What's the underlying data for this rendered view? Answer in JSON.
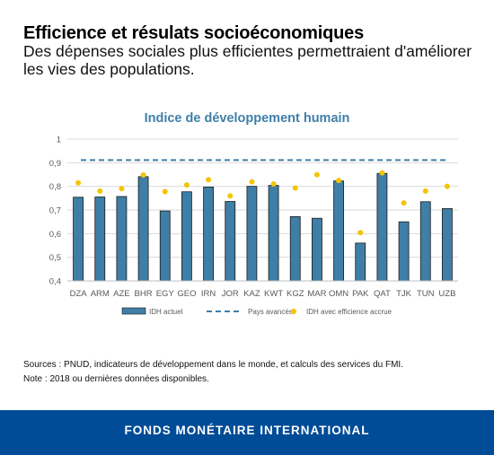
{
  "header": {
    "title": "Efficience et résulats socioéconomiques",
    "subtitle": "Des dépenses sociales plus efficientes permettraient d'améliorer les vies des populations."
  },
  "chart_data": {
    "type": "bar",
    "title": "Indice de développement humain",
    "categories": [
      "DZA",
      "ARM",
      "AZE",
      "BHR",
      "EGY",
      "GEO",
      "IRN",
      "JOR",
      "KAZ",
      "KWT",
      "KGZ",
      "MAR",
      "OMN",
      "PAK",
      "QAT",
      "TJK",
      "TUN",
      "UZB"
    ],
    "ylim": [
      0.4,
      1
    ],
    "yticks": [
      "0,4",
      "0,5",
      "0,6",
      "0,7",
      "0,8",
      "0,9",
      "1"
    ],
    "grid": true,
    "legend_position": "bottom",
    "series": [
      {
        "name": "IDH actuel",
        "kind": "bar",
        "color": "#3f7ea6",
        "values": [
          0.754,
          0.755,
          0.757,
          0.841,
          0.696,
          0.777,
          0.797,
          0.736,
          0.8,
          0.804,
          0.672,
          0.665,
          0.823,
          0.56,
          0.855,
          0.65,
          0.735,
          0.706
        ]
      },
      {
        "name": "Pays avancés",
        "kind": "dashed-line",
        "color": "#3f7ea6",
        "value": 0.911
      },
      {
        "name": "IDH avec efficience accrue",
        "kind": "dot",
        "color": "#f5c400",
        "values": [
          0.815,
          0.78,
          0.79,
          0.848,
          0.778,
          0.806,
          0.828,
          0.76,
          0.819,
          0.81,
          0.793,
          0.849,
          0.825,
          0.604,
          0.857,
          0.73,
          0.78,
          0.8
        ]
      }
    ]
  },
  "notes": {
    "sources": "Sources : PNUD, indicateurs de développement dans le monde, et calculs des services du FMI.",
    "note": "Note : 2018 ou dernières données disponibles."
  },
  "footer": {
    "text": "FONDS MONÉTAIRE INTERNATIONAL",
    "background": "#004c97"
  }
}
